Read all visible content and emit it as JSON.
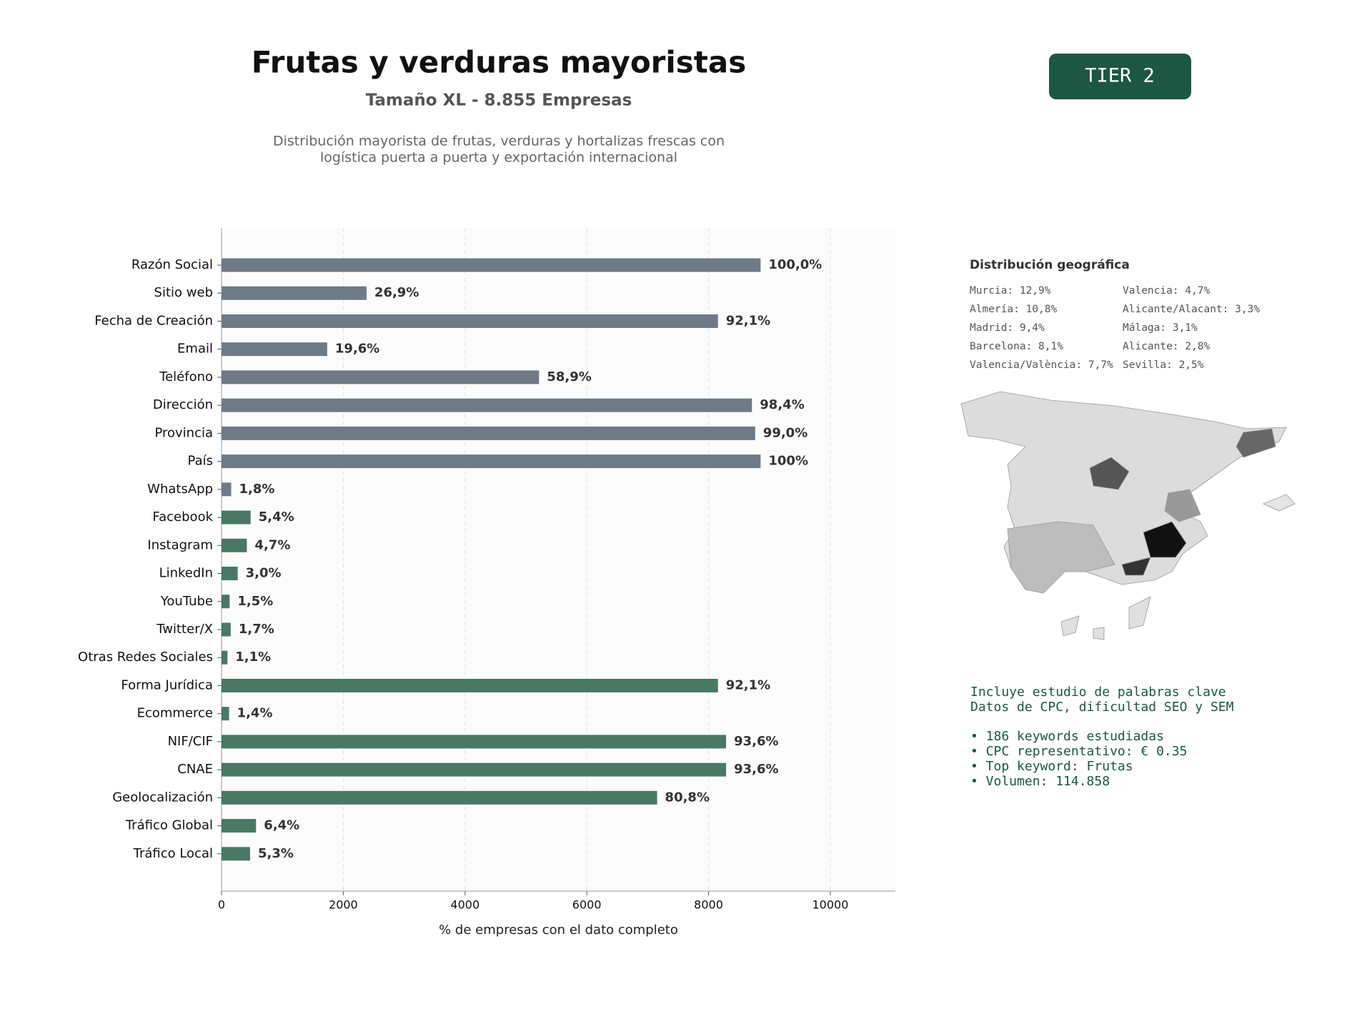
{
  "header": {
    "title": "Frutas y verduras mayoristas",
    "subtitle": "Tamaño XL - 8.855 Empresas",
    "description": [
      "Distribución mayorista de frutas, verduras y hortalizas frescas con",
      "logística puerta a puerta y exportación internacional"
    ],
    "badge": "TIER 2"
  },
  "chart_data": {
    "type": "bar",
    "horizontal": true,
    "categories": [
      "Razón Social",
      "Sitio web",
      "Fecha de Creación",
      "Email",
      "Teléfono",
      "Dirección",
      "Provincia",
      "País",
      "WhatsApp",
      "Facebook",
      "Instagram",
      "LinkedIn",
      "YouTube",
      "Twitter/X",
      "Otras Redes Sociales",
      "Forma Jurídica",
      "Ecommerce",
      "NIF/CIF",
      "CNAE",
      "Geolocalización",
      "Tráfico Global",
      "Tráfico Local"
    ],
    "values": [
      8855,
      2382,
      8155,
      1736,
      5216,
      8713,
      8766,
      8855,
      159,
      478,
      416,
      266,
      133,
      151,
      97,
      8155,
      124,
      8288,
      8288,
      7155,
      567,
      469
    ],
    "value_labels": [
      "100,0%",
      "26,9%",
      "92,1%",
      "19,6%",
      "58,9%",
      "98,4%",
      "99,0%",
      "100%",
      "1,8%",
      "5,4%",
      "4,7%",
      "3,0%",
      "1,5%",
      "1,7%",
      "1,1%",
      "92,1%",
      "1,4%",
      "93,6%",
      "93,6%",
      "80,8%",
      "6,4%",
      "5,3%"
    ],
    "colors": [
      "#6e7a86",
      "#6e7a86",
      "#6e7a86",
      "#6e7a86",
      "#6e7a86",
      "#6e7a86",
      "#6e7a86",
      "#6e7a86",
      "#6e7a86",
      "#4a7866",
      "#4a7866",
      "#4a7866",
      "#4a7866",
      "#4a7866",
      "#4a7866",
      "#4a7866",
      "#4a7866",
      "#4a7866",
      "#4a7866",
      "#4a7866",
      "#4a7866",
      "#4a7866"
    ],
    "xlim": [
      0,
      11069
    ],
    "xticks": [
      0,
      2000,
      4000,
      6000,
      8000,
      10000
    ],
    "xlabel": "% de empresas con el dato completo",
    "grid": true
  },
  "geo": {
    "title": "Distribución geográfica",
    "items": [
      "Murcia: 12,9%",
      "Valencia: 4,7%",
      "Almería: 10,8%",
      "Alicante/Alacant: 3,3%",
      "Madrid: 9,4%",
      "Málaga: 3,1%",
      "Barcelona: 8,1%",
      "Alicante: 2,8%",
      "Valencia/València: 7,7%",
      "Sevilla: 2,5%"
    ]
  },
  "keywords": {
    "intro": [
      "Incluye estudio de palabras clave",
      "Datos de CPC, dificultad SEO y SEM"
    ],
    "bullets": [
      "• 186 keywords estudiadas",
      "• CPC representativo: € 0.35",
      "• Top keyword: Frutas",
      "• Volumen: 114.858"
    ]
  }
}
